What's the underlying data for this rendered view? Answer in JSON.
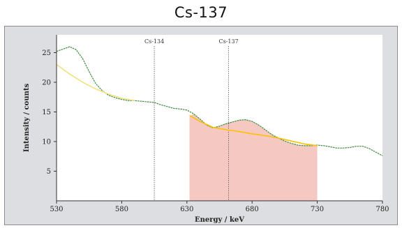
{
  "title": "Cs-137",
  "chart_data": {
    "type": "line",
    "xlabel": "Energy / keV",
    "ylabel": "Intensity / counts",
    "xlim": [
      530,
      780
    ],
    "ylim": [
      0,
      28
    ],
    "xticks": [
      "530",
      "580",
      "630",
      "680",
      "730",
      "780"
    ],
    "yticks": [
      "5",
      "10",
      "15",
      "20",
      "25"
    ],
    "grid": false,
    "markers": [
      {
        "label": "Cs-134",
        "x": 605
      },
      {
        "label": "Cs-137",
        "x": 662
      }
    ],
    "shaded_region": {
      "x_start": 632,
      "x_end": 730,
      "color": "#f5c8c2"
    },
    "series": [
      {
        "color": "#3c8a3c",
        "x": [
          530,
          535,
          540,
          545,
          550,
          555,
          560,
          565,
          570,
          575,
          580,
          585,
          590,
          595,
          600,
          605,
          610,
          615,
          620,
          625,
          630,
          635,
          640,
          645,
          650,
          655,
          660,
          665,
          670,
          675,
          680,
          685,
          690,
          695,
          700,
          705,
          710,
          715,
          720,
          725,
          730,
          735,
          740,
          745,
          750,
          755,
          760,
          765,
          770,
          775,
          780
        ],
        "y": [
          25.2,
          25.6,
          26.0,
          25.5,
          24.0,
          21.8,
          19.8,
          18.6,
          17.8,
          17.4,
          17.1,
          16.9,
          16.9,
          16.8,
          16.7,
          16.6,
          16.2,
          15.9,
          15.6,
          15.5,
          15.3,
          14.7,
          13.8,
          12.8,
          12.3,
          12.6,
          13.0,
          13.3,
          13.6,
          13.7,
          13.4,
          12.8,
          12.0,
          11.2,
          10.6,
          10.1,
          9.7,
          9.4,
          9.3,
          9.3,
          9.4,
          9.3,
          9.1,
          8.9,
          8.9,
          9.0,
          9.2,
          9.2,
          8.8,
          8.2,
          7.6
        ]
      },
      {
        "color": "#f2e080",
        "x": [
          530,
          540,
          550,
          560,
          570,
          580,
          590
        ],
        "y": [
          23.0,
          21.4,
          20.0,
          18.9,
          18.0,
          17.3,
          16.9
        ]
      },
      {
        "color": "#ffc000",
        "x": [
          632,
          640,
          650,
          660,
          670,
          680,
          690,
          700,
          710,
          720,
          730
        ],
        "y": [
          14.4,
          13.4,
          12.4,
          12.0,
          11.7,
          11.3,
          11.0,
          10.6,
          10.1,
          9.6,
          9.3
        ]
      }
    ]
  }
}
